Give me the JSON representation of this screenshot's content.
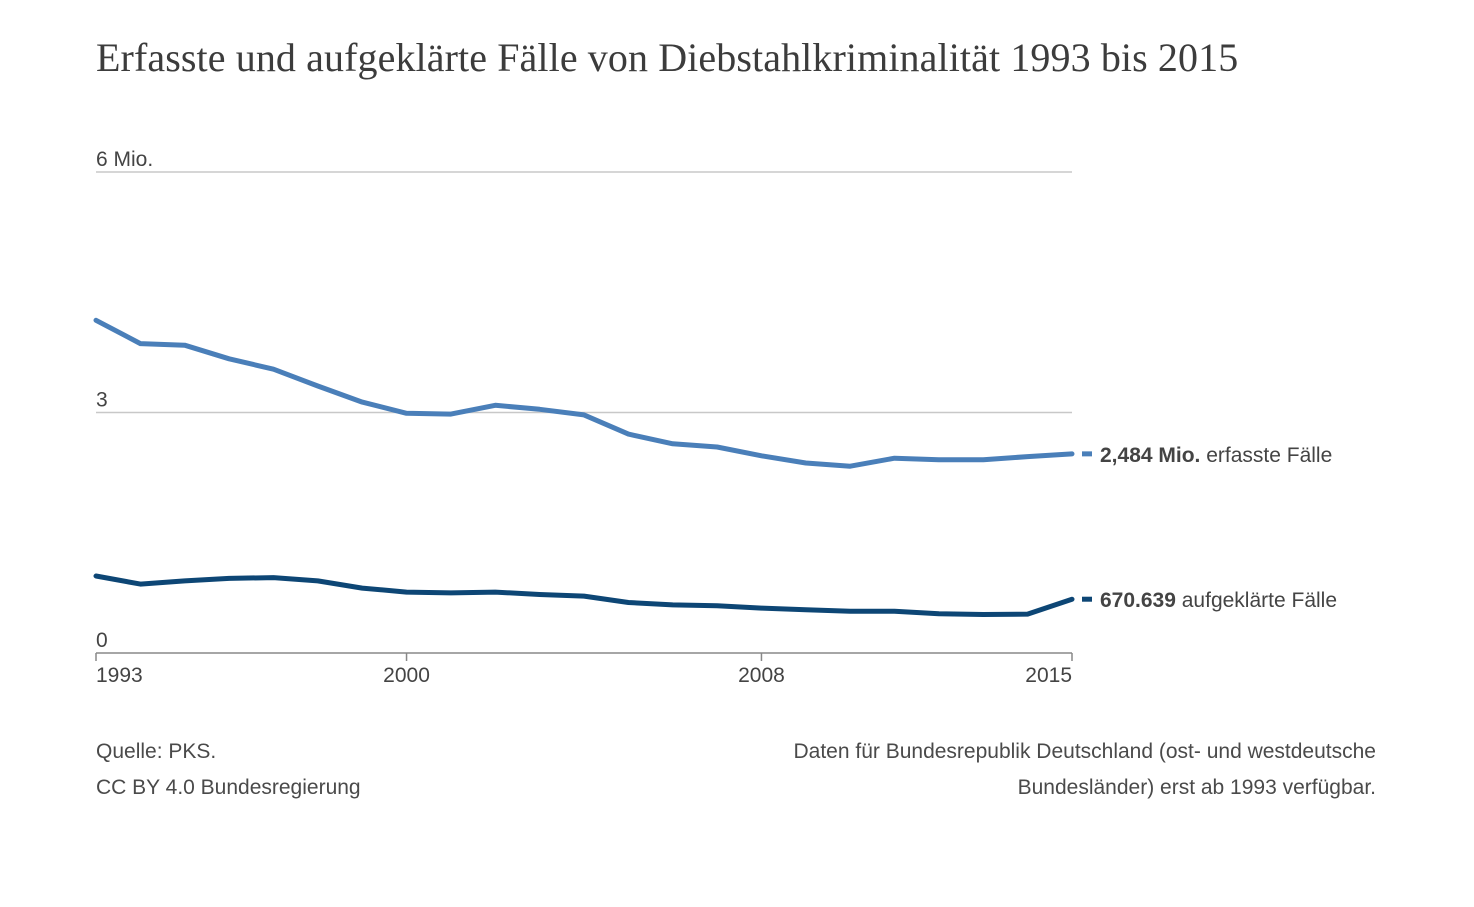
{
  "title": "Erfasste und aufgeklärte Fälle von Diebstahlkriminalität 1993 bis 2015",
  "chart_data": {
    "type": "line",
    "x": [
      1993,
      1994,
      1995,
      1996,
      1997,
      1998,
      1999,
      2000,
      2001,
      2002,
      2003,
      2004,
      2005,
      2006,
      2007,
      2008,
      2009,
      2010,
      2011,
      2012,
      2013,
      2014,
      2015
    ],
    "xlim": [
      1993,
      2015
    ],
    "ylim": [
      0,
      6
    ],
    "y_ticks": [
      {
        "value": 6,
        "label": "6 Mio."
      },
      {
        "value": 3,
        "label": "3"
      },
      {
        "value": 0,
        "label": "0"
      }
    ],
    "x_ticks": [
      {
        "value": 1993,
        "label": "1993"
      },
      {
        "value": 2000,
        "label": "2000"
      },
      {
        "value": 2008,
        "label": "2008"
      },
      {
        "value": 2015,
        "label": "2015"
      }
    ],
    "grid": true,
    "series": [
      {
        "color": "#4a7fb9",
        "values": [
          4.15,
          3.86,
          3.84,
          3.67,
          3.54,
          3.33,
          3.13,
          2.99,
          2.98,
          3.09,
          3.04,
          2.97,
          2.73,
          2.61,
          2.57,
          2.46,
          2.37,
          2.33,
          2.43,
          2.41,
          2.41,
          2.45,
          2.484
        ],
        "end_label_value": "2,484 Mio.",
        "end_label_text": "erfasste Fälle"
      },
      {
        "color": "#0d4675",
        "values": [
          0.96,
          0.86,
          0.9,
          0.93,
          0.94,
          0.9,
          0.81,
          0.76,
          0.75,
          0.76,
          0.73,
          0.71,
          0.63,
          0.6,
          0.59,
          0.56,
          0.54,
          0.52,
          0.52,
          0.49,
          0.48,
          0.485,
          0.671
        ],
        "end_label_value": "670.639",
        "end_label_text": "aufgeklärte Fälle"
      }
    ]
  },
  "footer": {
    "source": "Quelle: PKS.",
    "license": "CC BY 4.0 Bundesregierung",
    "note_line1": "Daten für Bundesrepublik Deutschland (ost- und westdeutsche",
    "note_line2": "Bundesländer) erst ab 1993 verfügbar."
  },
  "colors": {
    "grid": "#c8c8c8",
    "axis": "#888888",
    "text": "#444444"
  }
}
